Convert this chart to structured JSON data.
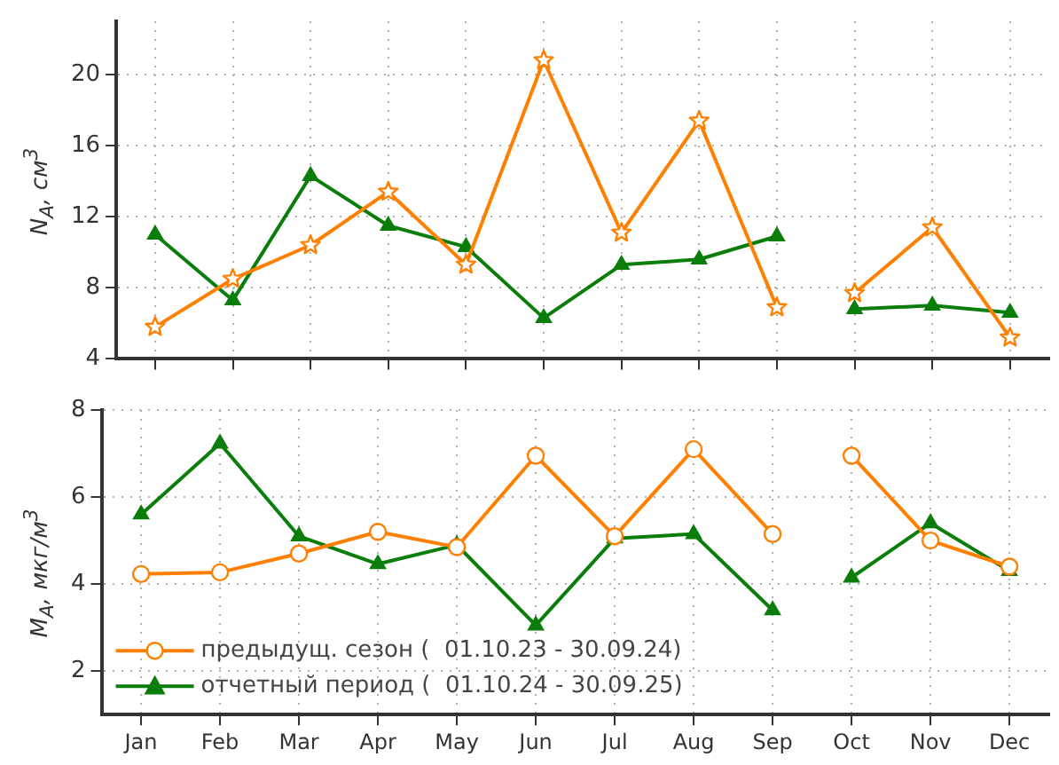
{
  "chart_data": [
    {
      "type": "line",
      "ylabel": "N$_{A}$, см$^{3}$",
      "categories": [
        null,
        null,
        null,
        null,
        null,
        null,
        null,
        null,
        null,
        null,
        null,
        null
      ],
      "ylim": [
        4,
        23
      ],
      "yticks": [
        4,
        8,
        12,
        16,
        20
      ],
      "grid": true,
      "legend": false,
      "tick_labels": "y",
      "series": [
        {
          "color": "#ff8000",
          "marker": "star",
          "values": [
            5.8,
            8.5,
            10.4,
            13.4,
            9.3,
            20.8,
            11.1,
            17.4,
            6.9,
            null,
            null,
            null
          ]
        },
        {
          "color": "#ff8000",
          "marker": "star",
          "values": [
            null,
            null,
            null,
            null,
            null,
            null,
            null,
            null,
            null,
            7.7,
            11.4,
            5.2
          ]
        },
        {
          "color": "#0a7d0a",
          "marker": "triangle",
          "values": [
            11.0,
            7.3,
            14.3,
            11.5,
            10.3,
            6.3,
            9.3,
            9.6,
            10.9,
            null,
            null,
            null
          ]
        },
        {
          "color": "#0a7d0a",
          "marker": "triangle",
          "values": [
            null,
            null,
            null,
            null,
            null,
            null,
            null,
            null,
            null,
            6.8,
            7.0,
            6.6
          ]
        }
      ]
    },
    {
      "type": "line",
      "ylabel": "M$_{A}$, мкг/м$^{3}$",
      "categories": [
        "Jan",
        "Feb",
        "Mar",
        "Apr",
        "May",
        "Jun",
        "Jul",
        "Aug",
        "Sep",
        "Oct",
        "Nov",
        "Dec"
      ],
      "ylim": [
        1,
        8
      ],
      "yticks": [
        2,
        4,
        6,
        8
      ],
      "grid": true,
      "legend": "bottom left",
      "series": [
        {
          "name": "предыдущ. сезон (  01.10.23 - 30.09.24)",
          "color": "#ff8000",
          "marker": "circle",
          "values": [
            4.23,
            4.27,
            4.7,
            5.2,
            4.85,
            6.95,
            5.1,
            7.1,
            5.15,
            null,
            null,
            null
          ]
        },
        {
          "color": "#ff8000",
          "marker": "circle",
          "values": [
            null,
            null,
            null,
            null,
            null,
            null,
            null,
            null,
            null,
            6.95,
            5.0,
            4.4
          ]
        },
        {
          "name": "отчетный период (  01.10.24 - 30.09.25)",
          "color": "#0a7d0a",
          "marker": "triangle",
          "values": [
            5.6,
            7.23,
            5.1,
            4.46,
            4.9,
            3.05,
            5.05,
            5.15,
            3.4,
            null,
            null,
            null
          ]
        },
        {
          "color": "#0a7d0a",
          "marker": "triangle",
          "values": [
            null,
            null,
            null,
            null,
            null,
            null,
            null,
            null,
            null,
            4.15,
            5.4,
            4.3
          ]
        }
      ]
    }
  ]
}
